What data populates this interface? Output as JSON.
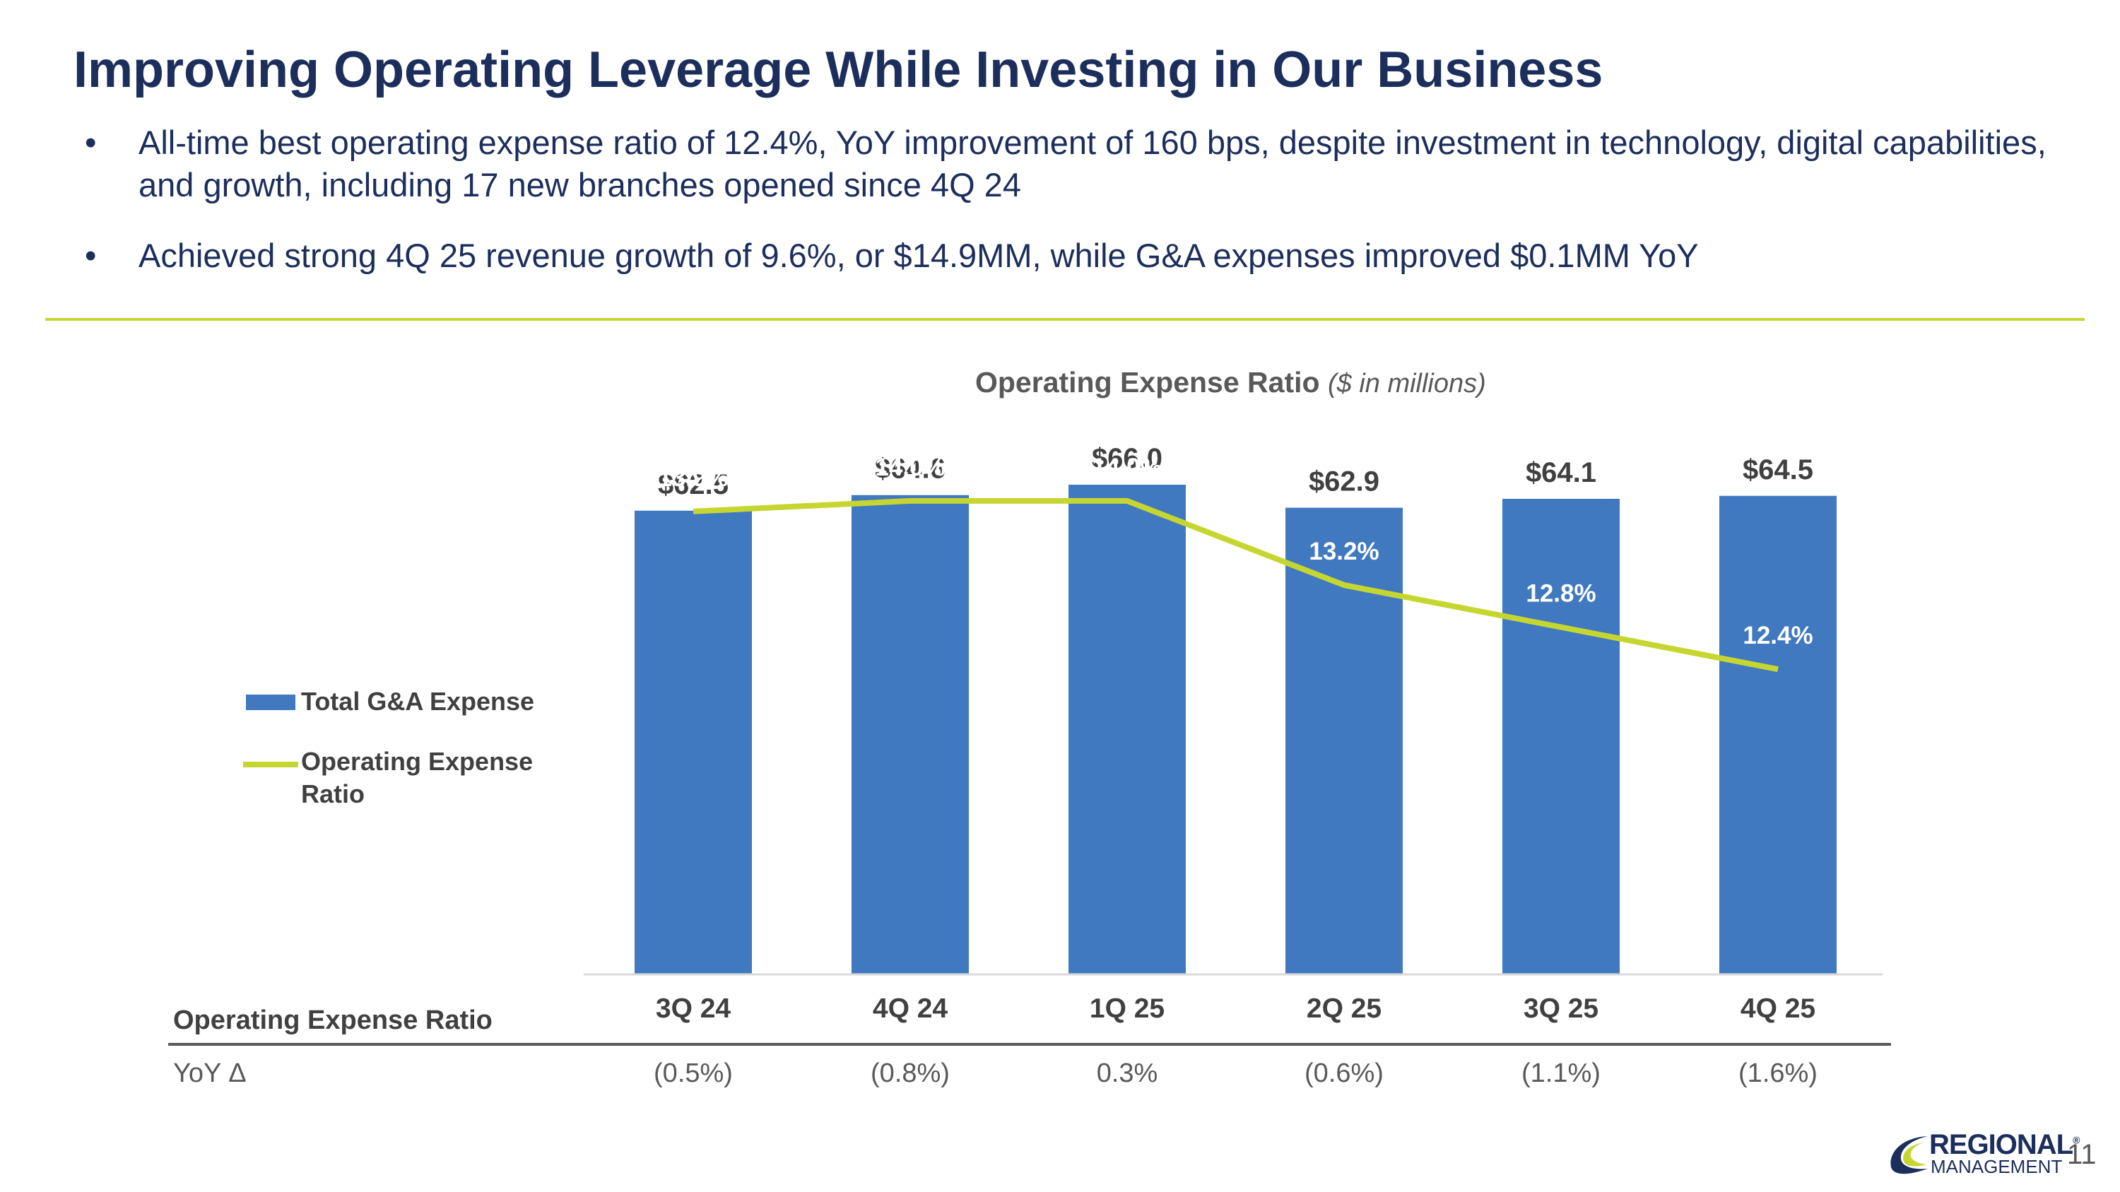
{
  "title": "Improving Operating Leverage While Investing in Our Business",
  "bullets": [
    "All-time best operating expense ratio of 12.4%, YoY improvement of 160 bps, despite investment in technology, digital capabilities, and growth, including 17 new branches opened since 4Q 24",
    "Achieved strong 4Q 25 revenue growth of 9.6%, or $14.9MM, while G&A expenses improved $0.1MM YoY"
  ],
  "bullet_symbol": "•",
  "chart_title": {
    "main": "Operating Expense Ratio",
    "unit": "($ in millions)"
  },
  "chart_data": {
    "type": "bar",
    "title": "Operating Expense Ratio ($ in millions)",
    "categories": [
      "3Q 24",
      "4Q 24",
      "1Q 25",
      "2Q 25",
      "3Q 25",
      "4Q 25"
    ],
    "series": [
      {
        "name": "Total G&A Expense",
        "type": "bar",
        "values": [
          62.5,
          64.6,
          66.0,
          62.9,
          64.1,
          64.5
        ],
        "labels": [
          "$62.5",
          "$64.6",
          "$66.0",
          "$62.9",
          "$64.1",
          "$64.5"
        ],
        "color": "#4079c0"
      },
      {
        "name": "Operating Expense Ratio",
        "type": "line",
        "values": [
          13.9,
          14.0,
          14.0,
          13.2,
          12.8,
          12.4
        ],
        "labels": [
          "13.9%",
          "14.0%",
          "14.0%",
          "13.2%",
          "12.8%",
          "12.4%"
        ],
        "color": "#c6d631"
      }
    ],
    "bar_ylim": [
      0,
      78
    ],
    "line_ylim": [
      9.5,
      15.0
    ],
    "legend": "left",
    "grid": false
  },
  "legend": {
    "bar_label": "Total G&A Expense",
    "line_label_1": "Operating Expense",
    "line_label_2": "Ratio"
  },
  "table": {
    "header": "Operating Expense Ratio",
    "row_label": "YoY Δ",
    "yoy": [
      "(0.5%)",
      "(0.8%)",
      "0.3%",
      "(0.6%)",
      "(1.1%)",
      "(1.6%)"
    ]
  },
  "logo": {
    "line1": "REGIONAL",
    "line2": "MANAGEMENT",
    "mark": "®"
  },
  "page_number": "11",
  "colors": {
    "navy": "#1c2e5c",
    "bar": "#4079c0",
    "line": "#c6d631",
    "text_gray": "#404040"
  }
}
